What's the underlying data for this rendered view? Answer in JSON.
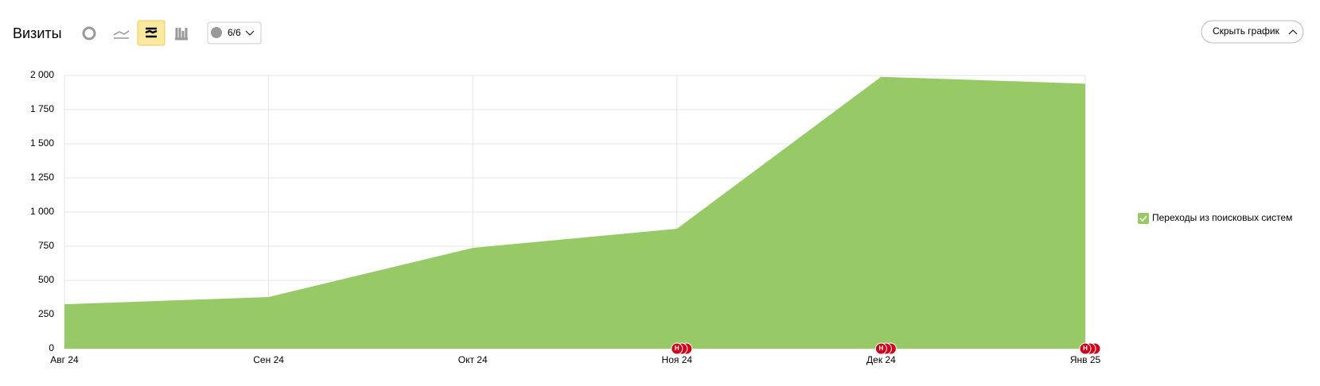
{
  "header": {
    "title": "Визиты",
    "comments_filter": "6/6",
    "hide_button": "Скрыть график"
  },
  "chart_data": {
    "type": "area",
    "categories": [
      "Авг 24",
      "Сен 24",
      "Окт 24",
      "Ноя 24",
      "Дек 24",
      "Янв 25"
    ],
    "series": [
      {
        "name": "Переходы из поисковых систем",
        "color": "#97c967",
        "values": [
          325,
          378,
          738,
          878,
          1990,
          1940
        ]
      }
    ],
    "ylim": [
      0,
      2000
    ],
    "yticks": [
      0,
      250,
      500,
      750,
      {
        "value": 1000,
        "label": "1 000"
      },
      {
        "value": 1250,
        "label": "1 250"
      },
      {
        "value": 1500,
        "label": "1 500"
      },
      {
        "value": 1750,
        "label": "1 750"
      },
      {
        "value": 2000,
        "label": "2 000"
      }
    ],
    "grid": true,
    "annotations": [
      {
        "category": "Ноя 24",
        "label": "Н"
      },
      {
        "category": "Дек 24",
        "label": "Н"
      },
      {
        "category": "Янв 25",
        "label": "Н"
      }
    ]
  }
}
